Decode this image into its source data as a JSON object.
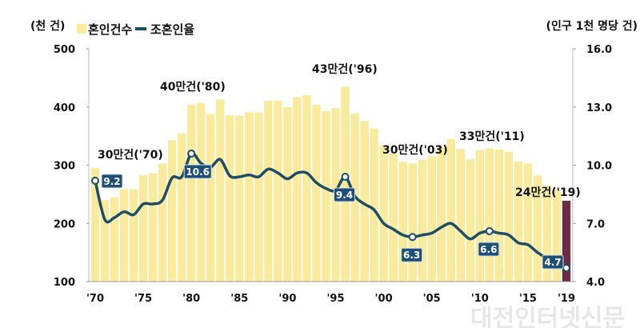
{
  "chart_data": {
    "type": "bar+line",
    "left_axis_label": "(천 건)",
    "right_axis_label": "(인구 1천 명당 건)",
    "legend": [
      {
        "name": "혼인건수",
        "type": "bar",
        "color": "#F9EB9B"
      },
      {
        "name": "조혼인율",
        "type": "line",
        "color": "#1E4D66"
      }
    ],
    "left_ylim": [
      100,
      500
    ],
    "left_yticks": [
      "100",
      "200",
      "300",
      "400",
      "500"
    ],
    "right_ylim": [
      4.0,
      16.0
    ],
    "right_yticks": [
      "4.0",
      "7.0",
      "10.0",
      "13.0",
      "16.0"
    ],
    "xtick_labels": [
      "'70",
      "'75",
      "'80",
      "'85",
      "'90",
      "'95",
      "'00",
      "'05",
      "'10",
      "'15",
      "'19"
    ],
    "xtick_years": [
      1970,
      1975,
      1980,
      1985,
      1990,
      1995,
      2000,
      2005,
      2010,
      2015,
      2019
    ],
    "years": [
      1970,
      1971,
      1972,
      1973,
      1974,
      1975,
      1976,
      1977,
      1978,
      1979,
      1980,
      1981,
      1982,
      1983,
      1984,
      1985,
      1986,
      1987,
      1988,
      1989,
      1990,
      1991,
      1992,
      1993,
      1994,
      1995,
      1996,
      1997,
      1998,
      1999,
      2000,
      2001,
      2002,
      2003,
      2004,
      2005,
      2006,
      2007,
      2008,
      2009,
      2010,
      2011,
      2012,
      2013,
      2014,
      2015,
      2016,
      2017,
      2018,
      2019
    ],
    "series": [
      {
        "name": "혼인건수",
        "unit": "천 건",
        "values": [
          295,
          240,
          245,
          259,
          259,
          283,
          286,
          303,
          343,
          355,
          404,
          407,
          388,
          413,
          386,
          385,
          391,
          391,
          411,
          411,
          400,
          417,
          420,
          404,
          393,
          398,
          435,
          389,
          376,
          363,
          334,
          320,
          306,
          303,
          309,
          316,
          332,
          345,
          328,
          310,
          326,
          329,
          327,
          323,
          306,
          303,
          282,
          265,
          258,
          239
        ]
      },
      {
        "name": "조혼인율",
        "unit": "인구 1천 명당 건",
        "values": [
          9.2,
          7.2,
          7.3,
          7.6,
          7.45,
          8.0,
          8.0,
          8.2,
          9.35,
          9.4,
          10.6,
          10.1,
          9.9,
          10.3,
          9.45,
          9.4,
          9.5,
          9.4,
          9.8,
          9.6,
          9.3,
          9.6,
          9.6,
          9.1,
          8.8,
          8.7,
          9.4,
          8.4,
          8.0,
          7.7,
          7.0,
          6.7,
          6.4,
          6.3,
          6.4,
          6.5,
          6.8,
          7.0,
          6.6,
          6.2,
          6.5,
          6.6,
          6.5,
          6.4,
          6.0,
          5.9,
          5.5,
          5.2,
          5.0,
          4.7
        ]
      }
    ],
    "highlight_bar_year": 2019,
    "highlight_bar_color": "#6B2C45",
    "bar_annotations": [
      {
        "year": 1970,
        "text": "30만건('70)"
      },
      {
        "year": 1980,
        "text": "40만건('80)"
      },
      {
        "year": 1996,
        "text": "43만건('96)"
      },
      {
        "year": 2003,
        "text": "30만건('03)"
      },
      {
        "year": 2011,
        "text": "33만건('11)"
      },
      {
        "year": 2019,
        "text": "24만건('19)"
      }
    ],
    "rate_labels": [
      {
        "year": 1970,
        "text": "9.2"
      },
      {
        "year": 1980,
        "text": "10.6"
      },
      {
        "year": 1996,
        "text": "9.4"
      },
      {
        "year": 2003,
        "text": "6.3"
      },
      {
        "year": 2011,
        "text": "6.6"
      },
      {
        "year": 2019,
        "text": "4.7"
      }
    ],
    "watermark": "대전인터넷신문"
  }
}
